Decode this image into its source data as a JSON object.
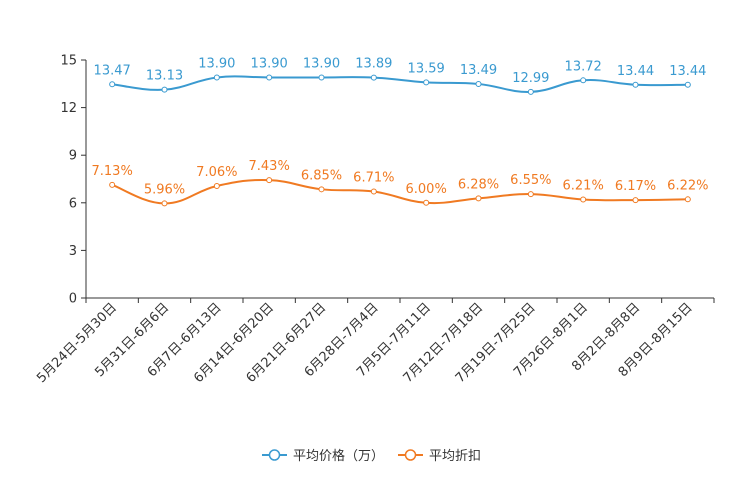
{
  "chart_data": {
    "type": "line",
    "title": "",
    "xlabel": "",
    "ylabel": "",
    "ylim": [
      0,
      15
    ],
    "yticks": [
      0,
      3,
      6,
      9,
      12,
      15
    ],
    "grid": false,
    "legend_position": "bottom-center",
    "categories": [
      "5月24日-5月30日",
      "5月31日-6月6日",
      "6月7日-6月13日",
      "6月14日-6月20日",
      "6月21日-6月27日",
      "6月28日-7月4日",
      "7月5日-7月11日",
      "7月12日-7月18日",
      "7月19日-7月25日",
      "7月26日-8月1日",
      "8月2日-8月8日",
      "8月9日-8月15日"
    ],
    "series": [
      {
        "name": "平均价格（万）",
        "color": "#3a9ad0",
        "values": [
          13.47,
          13.13,
          13.9,
          13.9,
          13.9,
          13.89,
          13.59,
          13.49,
          12.99,
          13.72,
          13.44,
          13.44
        ],
        "labels": [
          "13.47",
          "13.13",
          "13.90",
          "13.90",
          "13.90",
          "13.89",
          "13.59",
          "13.49",
          "12.99",
          "13.72",
          "13.44",
          "13.44"
        ]
      },
      {
        "name": "平均折扣",
        "color": "#f07a22",
        "values": [
          7.13,
          5.96,
          7.06,
          7.43,
          6.85,
          6.71,
          6.0,
          6.28,
          6.55,
          6.21,
          6.17,
          6.22
        ],
        "labels": [
          "7.13%",
          "5.96%",
          "7.06%",
          "7.43%",
          "6.85%",
          "6.71%",
          "6.00%",
          "6.28%",
          "6.55%",
          "6.21%",
          "6.17%",
          "6.22%"
        ]
      }
    ]
  }
}
